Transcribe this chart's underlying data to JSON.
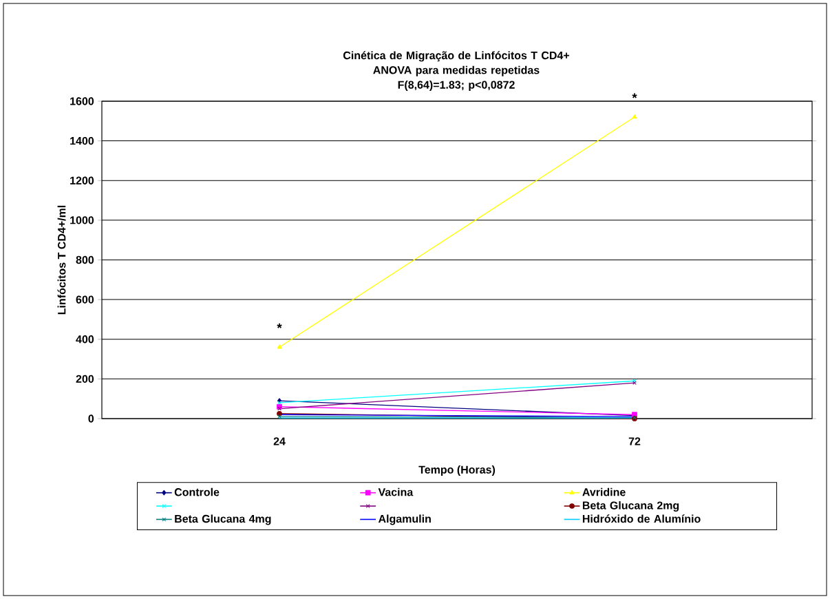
{
  "chart_data": {
    "type": "line",
    "title": "Cinética de Migração de Linfócitos T CD4+",
    "subtitle": "ANOVA para medidas repetidas\nF(8,64)=1.83; p<0,0872",
    "xlabel": "Tempo (Horas)",
    "ylabel": "Linfócitos T CD4+/ml",
    "categories": [
      "24",
      "72"
    ],
    "series": [
      {
        "name": "Controle",
        "color": "#000080",
        "marker": "diamond",
        "values": [
          90,
          15
        ]
      },
      {
        "name": "Vacina",
        "color": "#ff00ff",
        "marker": "square",
        "values": [
          60,
          20
        ]
      },
      {
        "name": "Avridine",
        "color": "#ffff00",
        "marker": "triangle",
        "values": [
          360,
          1520
        ]
      },
      {
        "color": "#00ffff",
        "marker": "cross",
        "values": [
          80,
          190
        ]
      },
      {
        "color": "#800080",
        "marker": "cross",
        "values": [
          50,
          180
        ]
      },
      {
        "name": "Beta Glucana 2mg",
        "color": "#800000",
        "marker": "circle",
        "values": [
          25,
          0
        ]
      },
      {
        "name": "Beta Glucana 4mg",
        "color": "#008080",
        "marker": "cross",
        "values": [
          10,
          5
        ]
      },
      {
        "name": "Algamulin",
        "color": "#0000ff",
        "marker": "none",
        "values": [
          20,
          10
        ]
      },
      {
        "name": "Hidróxido de Alumínio",
        "color": "#00ccff",
        "marker": "none",
        "values": [
          3,
          3
        ]
      }
    ],
    "ylim": [
      0,
      1600
    ],
    "yticks": [
      0,
      200,
      400,
      600,
      800,
      1000,
      1200,
      1400,
      1600
    ],
    "grid": "y",
    "legend": "bottom",
    "annotations": [
      "*",
      "*"
    ]
  }
}
